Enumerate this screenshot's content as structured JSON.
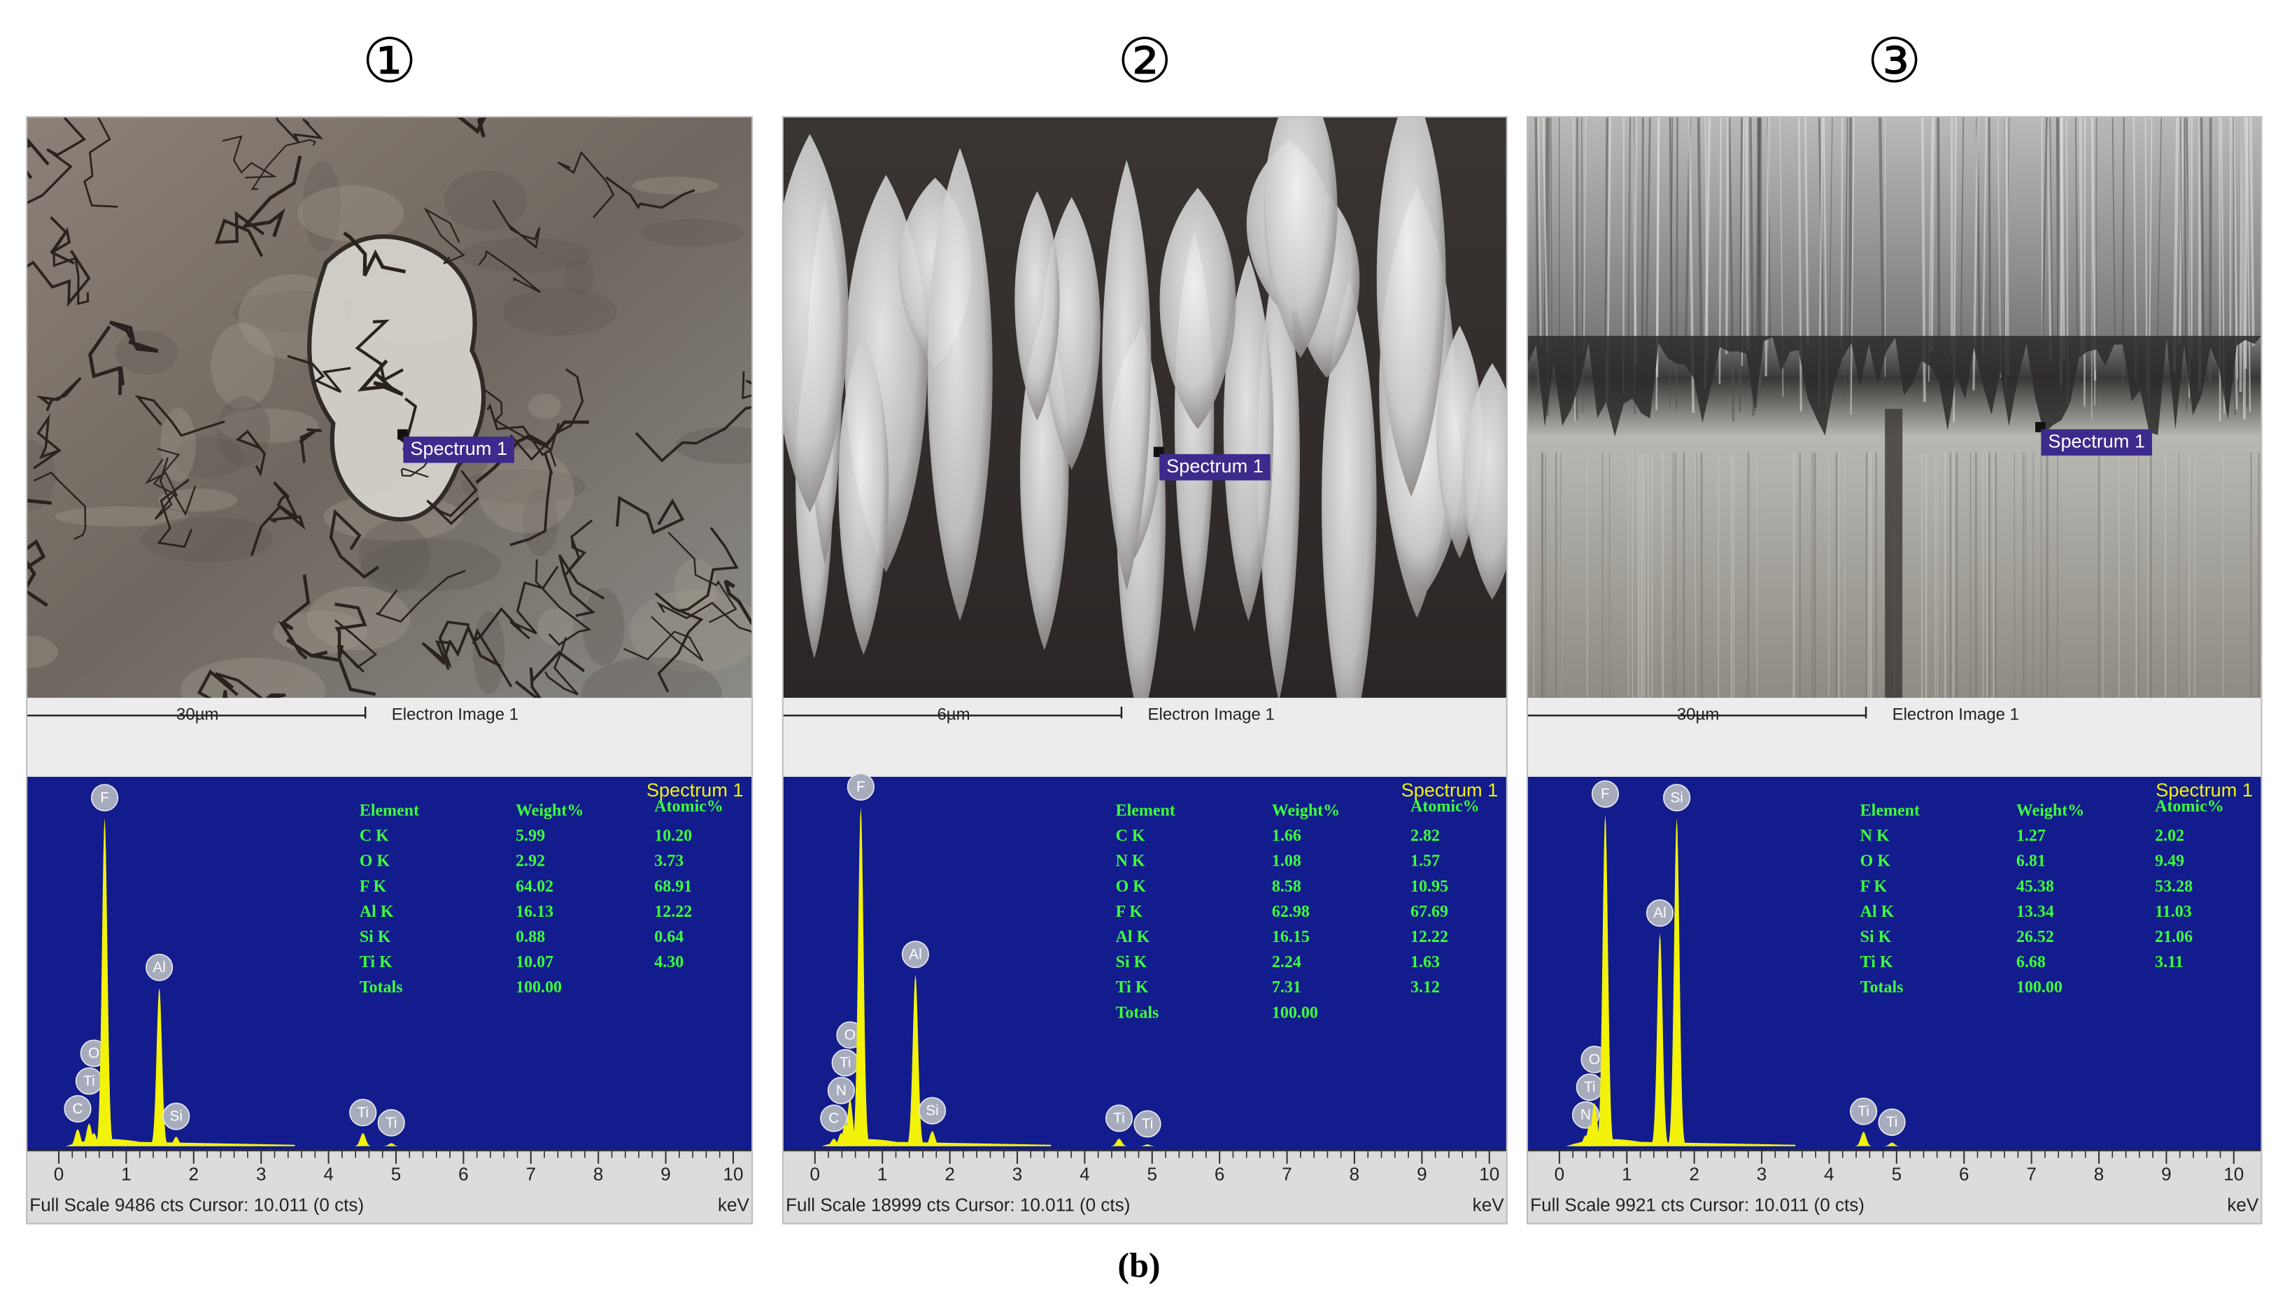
{
  "figure_caption": "(b)",
  "panels": [
    {
      "label": "①",
      "scale_bar": "30µm",
      "image_caption": "Electron Image 1",
      "marker_label": "Spectrum 1",
      "table": {
        "title": "Spectrum 1",
        "header": [
          "Element",
          "Weight%",
          "Atomic%"
        ],
        "rows": [
          [
            "C K",
            "5.99",
            "10.20"
          ],
          [
            "O K",
            "2.92",
            "3.73"
          ],
          [
            "F K",
            "64.02",
            "68.91"
          ],
          [
            "Al K",
            "16.13",
            "12.22"
          ],
          [
            "Si K",
            "0.88",
            "0.64"
          ],
          [
            "Ti K",
            "10.07",
            "4.30"
          ],
          [
            "Totals",
            "100.00"
          ]
        ]
      }
    },
    {
      "label": "②",
      "scale_bar": "6µm",
      "image_caption": "Electron Image 1",
      "marker_label": "Spectrum 1",
      "table": {
        "title": "Spectrum 1",
        "header": [
          "Element",
          "Weight%",
          "Atomic%"
        ],
        "rows": [
          [
            "C K",
            "1.66",
            "2.82"
          ],
          [
            "N K",
            "1.08",
            "1.57"
          ],
          [
            "O K",
            "8.58",
            "10.95"
          ],
          [
            "F K",
            "62.98",
            "67.69"
          ],
          [
            "Al K",
            "16.15",
            "12.22"
          ],
          [
            "Si K",
            "2.24",
            "1.63"
          ],
          [
            "Ti K",
            "7.31",
            "3.12"
          ],
          [
            "Totals",
            "100.00"
          ]
        ]
      }
    },
    {
      "label": "③",
      "scale_bar": "30µm",
      "image_caption": "Electron Image 1",
      "marker_label": "Spectrum 1",
      "table": {
        "title": "Spectrum 1",
        "header": [
          "Element",
          "Weight%",
          "Atomic%"
        ],
        "rows": [
          [
            "N K",
            "1.27",
            "2.02"
          ],
          [
            "O K",
            "6.81",
            "9.49"
          ],
          [
            "F K",
            "45.38",
            "53.28"
          ],
          [
            "Al K",
            "13.34",
            "11.03"
          ],
          [
            "Si K",
            "26.52",
            "21.06"
          ],
          [
            "Ti K",
            "6.68",
            "3.11"
          ],
          [
            "Totals",
            "100.00"
          ]
        ]
      }
    }
  ],
  "chart_data": [
    {
      "type": "spectrum",
      "color": "#f2f20a",
      "peaks": {
        "labels": [
          "C",
          "Ti",
          "O",
          "F",
          "Al",
          "Si",
          "Ti",
          "Ti"
        ],
        "x": [
          0.28,
          0.45,
          0.52,
          0.68,
          1.49,
          1.74,
          4.51,
          4.93
        ],
        "values": [
          450,
          600,
          350,
          8700,
          4200,
          250,
          350,
          80
        ]
      },
      "xlim": [
        0,
        10
      ],
      "xticks": [
        0,
        1,
        2,
        3,
        4,
        5,
        6,
        7,
        8,
        9,
        10
      ],
      "ylim": [
        0,
        9486
      ],
      "x_unit": "keV",
      "footer": "Full Scale 9486 cts Cursor: 10.011  (0 cts)"
    },
    {
      "type": "spectrum",
      "color": "#f2f20a",
      "peaks": {
        "labels": [
          "C",
          "N",
          "Ti",
          "O",
          "F",
          "Al",
          "Si",
          "Ti",
          "Ti"
        ],
        "x": [
          0.28,
          0.39,
          0.45,
          0.52,
          0.68,
          1.49,
          1.74,
          4.51,
          4.93
        ],
        "values": [
          400,
          700,
          1200,
          2500,
          18000,
          9100,
          800,
          400,
          100
        ]
      },
      "xlim": [
        0,
        10
      ],
      "xticks": [
        0,
        1,
        2,
        3,
        4,
        5,
        6,
        7,
        8,
        9,
        10
      ],
      "ylim": [
        0,
        18999
      ],
      "x_unit": "keV",
      "footer": "Full Scale 18999 cts Cursor: 10.011  (0 cts)"
    },
    {
      "type": "spectrum",
      "color": "#f2f20a",
      "peaks": {
        "labels": [
          "N",
          "Ti",
          "O",
          "F",
          "Al",
          "Si",
          "Ti",
          "Ti"
        ],
        "x": [
          0.39,
          0.45,
          0.52,
          0.68,
          1.49,
          1.74,
          4.51,
          4.93
        ],
        "values": [
          300,
          600,
          1200,
          9200,
          5900,
          9100,
          400,
          100
        ]
      },
      "xlim": [
        0,
        10
      ],
      "xticks": [
        0,
        1,
        2,
        3,
        4,
        5,
        6,
        7,
        8,
        9,
        10
      ],
      "ylim": [
        0,
        9921
      ],
      "x_unit": "keV",
      "footer": "Full Scale 9921 cts Cursor: 10.011  (0 cts)"
    }
  ]
}
